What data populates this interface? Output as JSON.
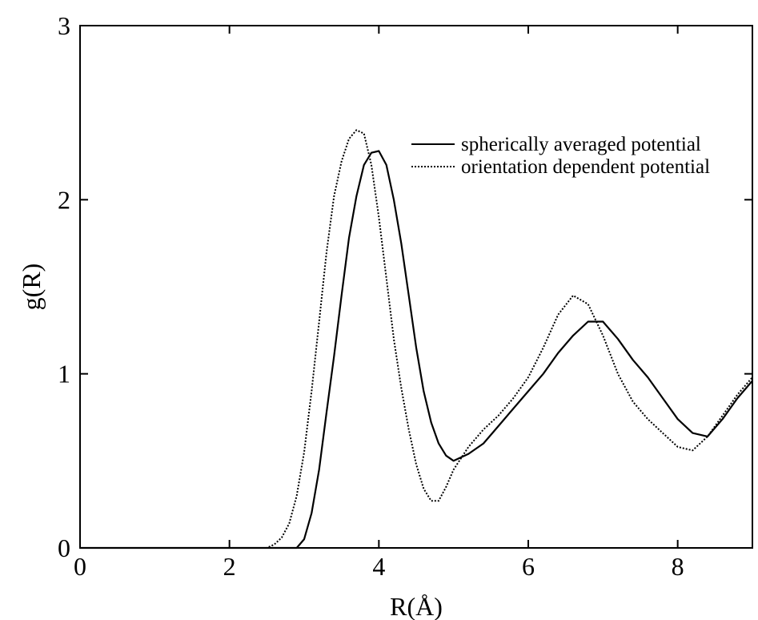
{
  "chart_data": {
    "type": "line",
    "title": "",
    "xlabel": "R(Å)",
    "ylabel": "g(R)",
    "xlim": [
      0,
      9
    ],
    "ylim": [
      0,
      3
    ],
    "xticks": [
      0,
      2,
      4,
      6,
      8
    ],
    "yticks": [
      0,
      1,
      2,
      3
    ],
    "grid": false,
    "legend_position": "top-right",
    "series": [
      {
        "name": "spherically averaged potential",
        "style": "solid",
        "color": "#000000",
        "x": [
          0,
          2.9,
          3.0,
          3.1,
          3.2,
          3.3,
          3.4,
          3.5,
          3.6,
          3.7,
          3.8,
          3.9,
          4.0,
          4.1,
          4.2,
          4.3,
          4.4,
          4.5,
          4.6,
          4.7,
          4.8,
          4.9,
          5.0,
          5.2,
          5.4,
          5.6,
          5.8,
          6.0,
          6.2,
          6.4,
          6.6,
          6.8,
          7.0,
          7.2,
          7.4,
          7.6,
          7.8,
          8.0,
          8.2,
          8.4,
          8.6,
          8.8,
          9.0
        ],
        "y": [
          0,
          0.0,
          0.05,
          0.2,
          0.45,
          0.78,
          1.1,
          1.45,
          1.78,
          2.02,
          2.2,
          2.27,
          2.28,
          2.2,
          2.0,
          1.75,
          1.45,
          1.15,
          0.9,
          0.72,
          0.6,
          0.53,
          0.5,
          0.54,
          0.6,
          0.7,
          0.8,
          0.9,
          1.0,
          1.12,
          1.22,
          1.3,
          1.3,
          1.2,
          1.08,
          0.98,
          0.86,
          0.74,
          0.66,
          0.64,
          0.74,
          0.86,
          0.96
        ]
      },
      {
        "name": "orientation dependent potential",
        "style": "dotted",
        "color": "#000000",
        "x": [
          0,
          2.5,
          2.6,
          2.7,
          2.8,
          2.9,
          3.0,
          3.1,
          3.2,
          3.3,
          3.4,
          3.5,
          3.6,
          3.7,
          3.8,
          3.9,
          4.0,
          4.1,
          4.2,
          4.3,
          4.4,
          4.5,
          4.6,
          4.7,
          4.8,
          4.9,
          5.0,
          5.2,
          5.4,
          5.6,
          5.8,
          6.0,
          6.2,
          6.4,
          6.6,
          6.8,
          7.0,
          7.2,
          7.4,
          7.6,
          7.8,
          8.0,
          8.2,
          8.4,
          8.6,
          8.8,
          9.0
        ],
        "y": [
          0,
          0.0,
          0.02,
          0.06,
          0.14,
          0.3,
          0.55,
          0.9,
          1.3,
          1.7,
          2.02,
          2.22,
          2.35,
          2.4,
          2.38,
          2.2,
          1.9,
          1.55,
          1.2,
          0.92,
          0.68,
          0.48,
          0.34,
          0.27,
          0.27,
          0.35,
          0.45,
          0.58,
          0.68,
          0.76,
          0.86,
          0.98,
          1.15,
          1.34,
          1.45,
          1.4,
          1.22,
          1.0,
          0.84,
          0.74,
          0.66,
          0.58,
          0.56,
          0.64,
          0.76,
          0.88,
          0.98
        ]
      }
    ]
  }
}
